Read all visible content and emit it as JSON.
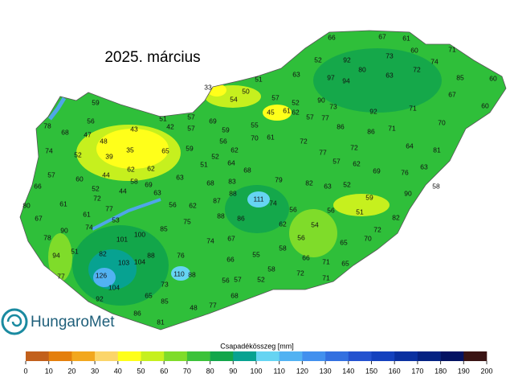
{
  "title": "2025. március",
  "logo": "HungaroMet",
  "stations": [
    66,
    67,
    61,
    60,
    71,
    73,
    74,
    52,
    92,
    80,
    72,
    63,
    85,
    60,
    51,
    63,
    97,
    94,
    67,
    60,
    33,
    50,
    54,
    57,
    90,
    73,
    52,
    62,
    45,
    61,
    92,
    71,
    57,
    77,
    59,
    78,
    68,
    56,
    47,
    48,
    51,
    57,
    43,
    42,
    57,
    69,
    55,
    70,
    61,
    86,
    86,
    71,
    70,
    72,
    64,
    81,
    74,
    52,
    35,
    65,
    59,
    56,
    59,
    62,
    72,
    77,
    57,
    62,
    69,
    76,
    63,
    52,
    51,
    64,
    68,
    79,
    39,
    62,
    62,
    57,
    60,
    66,
    44,
    63,
    58,
    69,
    63,
    52,
    68,
    83,
    82,
    52,
    63,
    72,
    44,
    56,
    62,
    87,
    88,
    111,
    74,
    56,
    59,
    90,
    58,
    80,
    61,
    77,
    61,
    53,
    75,
    88,
    86,
    56,
    51,
    82,
    67,
    78,
    90,
    74,
    85,
    62,
    54,
    72,
    70,
    101,
    100,
    67,
    56,
    65,
    74,
    51,
    94,
    82,
    88,
    76,
    55,
    58,
    66,
    66,
    103,
    104,
    71,
    65,
    110,
    77,
    126,
    88,
    56,
    57,
    58,
    72,
    71,
    52,
    104,
    73,
    65,
    92,
    85,
    77,
    68,
    48,
    86,
    81
  ],
  "legend": {
    "title": "Csapadékösszeg [mm]",
    "ticks": [
      0,
      10,
      20,
      30,
      40,
      50,
      60,
      70,
      80,
      90,
      100,
      110,
      120,
      130,
      140,
      150,
      160,
      170,
      180,
      190,
      200
    ],
    "colors": [
      "#c2601c",
      "#e47f0c",
      "#f2a71e",
      "#fbd56a",
      "#ffff1a",
      "#c6f01e",
      "#7fdc2a",
      "#3cc23a",
      "#12a64a",
      "#07a291",
      "#66d4f2",
      "#52b2f2",
      "#4290ee",
      "#3370e0",
      "#2452cf",
      "#1441be",
      "#0a30a0",
      "#052282",
      "#031262",
      "#3a1414"
    ]
  }
}
